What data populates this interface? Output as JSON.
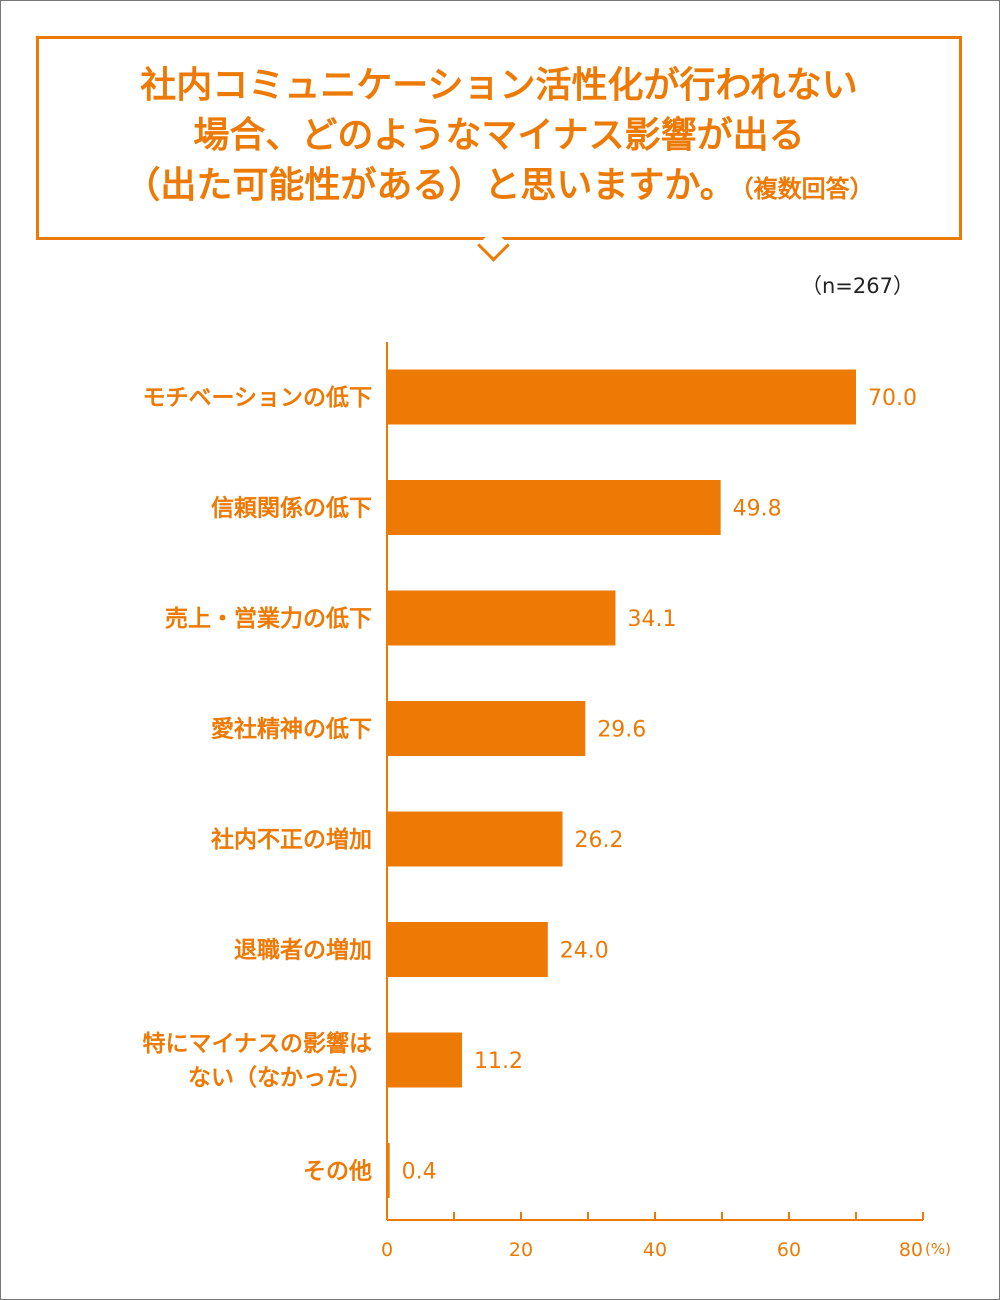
{
  "title": {
    "lines": [
      "社内コミュニケーション活性化が行われない",
      "場合、どのようなマイナス影響が出る",
      "（出た可能性がある）と思いますか。"
    ],
    "note": "（複数回答）"
  },
  "sample_size": "（n=267）",
  "colors": {
    "accent": "#ee7a06",
    "frame": "#777777"
  },
  "chart_data": {
    "type": "bar",
    "orientation": "horizontal",
    "categories": [
      [
        "モチベーションの低下"
      ],
      [
        "信頼関係の低下"
      ],
      [
        "売上・営業力の低下"
      ],
      [
        "愛社精神の低下"
      ],
      [
        "社内不正の増加"
      ],
      [
        "退職者の増加"
      ],
      [
        "特にマイナスの影響は",
        "ない（なかった）"
      ],
      [
        "その他"
      ]
    ],
    "values": [
      70.0,
      49.8,
      34.1,
      29.6,
      26.2,
      24.0,
      11.2,
      0.4
    ],
    "value_labels": [
      "70.0",
      "49.8",
      "34.1",
      "29.6",
      "26.2",
      "24.0",
      "11.2",
      "0.4"
    ],
    "x_ticks": [
      "0",
      "20",
      "40",
      "60",
      "80"
    ],
    "x_unit": "(%)",
    "xlim": [
      0,
      80
    ],
    "grid": false
  }
}
